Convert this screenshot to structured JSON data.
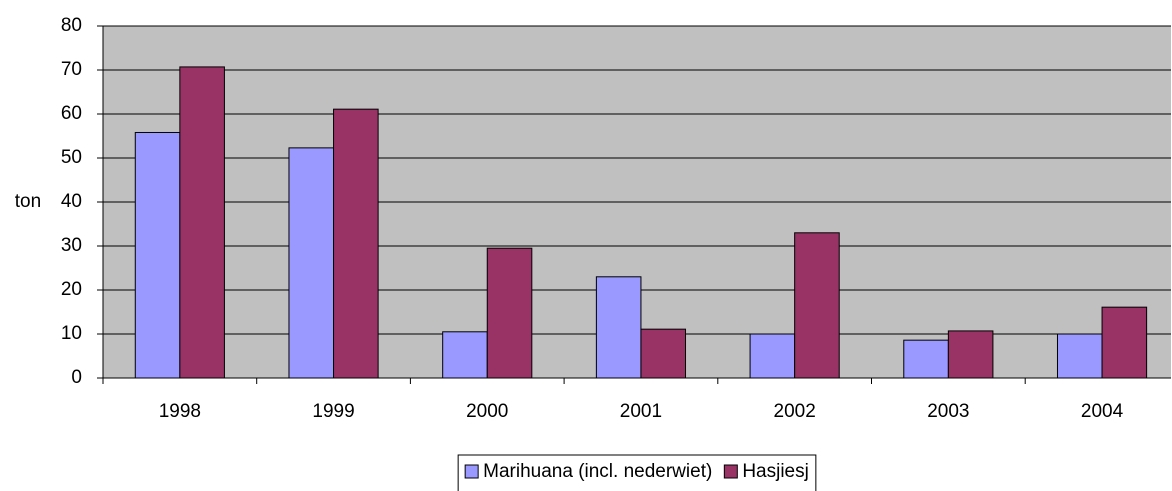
{
  "chart_data": {
    "type": "bar",
    "y_label": "ton",
    "categories": [
      "1998",
      "1999",
      "2000",
      "2001",
      "2002",
      "2003",
      "2004"
    ],
    "series": [
      {
        "name": "Marihuana (incl. nederwiet)",
        "color": "#9999ff",
        "values": [
          55.8,
          52.3,
          10.5,
          23,
          10,
          8.6,
          10
        ]
      },
      {
        "name": "Hasjiesj",
        "color": "#993366",
        "values": [
          70.7,
          61.1,
          29.5,
          11.1,
          33,
          10.7,
          16.1
        ]
      }
    ],
    "ylim": [
      0,
      80
    ],
    "yticks": [
      0,
      10,
      20,
      30,
      40,
      50,
      60,
      70,
      80
    ],
    "grid": true,
    "plot_background": "#c0c0c0",
    "legend": "bottom"
  }
}
